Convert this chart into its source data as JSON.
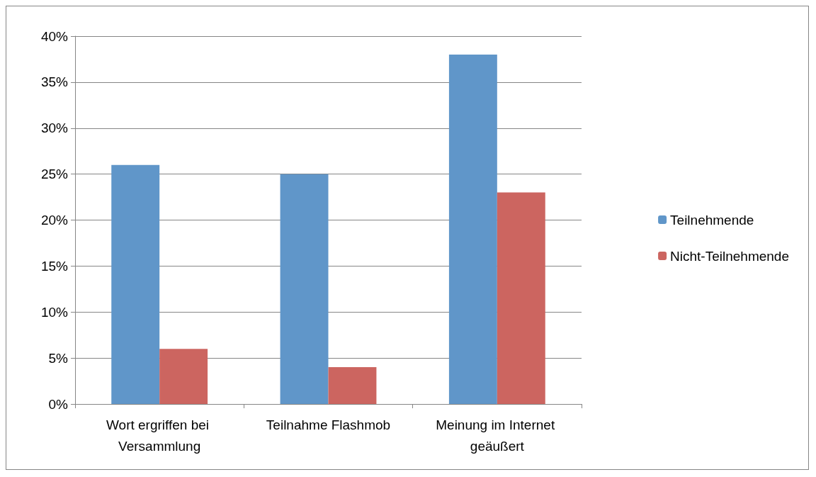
{
  "chart_data": {
    "type": "bar",
    "categories": [
      "Wort ergriffen bei Versammlung",
      "Teilnahme Flashmob",
      "Meinung im Internet geäußert"
    ],
    "series": [
      {
        "name": "Teilnehmende",
        "color": "#6096c9",
        "values": [
          26,
          25,
          38
        ]
      },
      {
        "name": "Nicht-Teilnehmende",
        "color": "#cc6560",
        "values": [
          6,
          4,
          23
        ]
      }
    ],
    "ylim": [
      0,
      40
    ],
    "yticks": [
      {
        "value": 0,
        "label": "0%"
      },
      {
        "value": 5,
        "label": "5%"
      },
      {
        "value": 10,
        "label": "10%"
      },
      {
        "value": 15,
        "label": "15%"
      },
      {
        "value": 20,
        "label": "20%"
      },
      {
        "value": 25,
        "label": "25%"
      },
      {
        "value": 30,
        "label": "30%"
      },
      {
        "value": 35,
        "label": "35%"
      },
      {
        "value": 40,
        "label": "40%"
      }
    ],
    "grid": "y",
    "legend": "right"
  }
}
